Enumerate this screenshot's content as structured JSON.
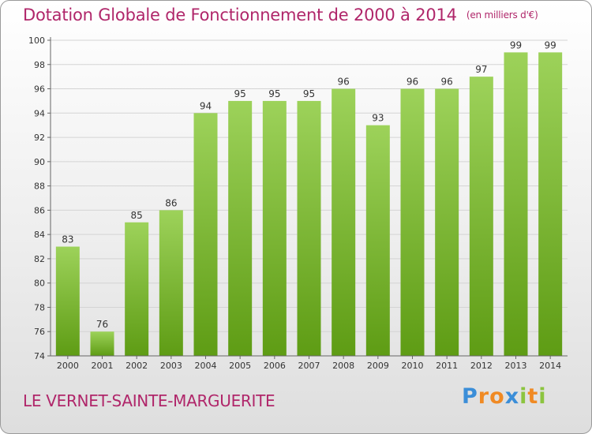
{
  "title": "Dotation Globale de Fonctionnement de 2000 à 2014",
  "unit": "(en milliers d'€)",
  "town": "LE VERNET-SAINTE-MARGUERITE",
  "logo": {
    "text": "Proxiti",
    "letters": [
      {
        "ch": "P",
        "color": "#3b8ed8"
      },
      {
        "ch": "r",
        "color": "#f08a24"
      },
      {
        "ch": "o",
        "color": "#f08a24"
      },
      {
        "ch": "x",
        "color": "#3b8ed8"
      },
      {
        "ch": "i",
        "color": "#8cc43f"
      },
      {
        "ch": "t",
        "color": "#f08a24"
      },
      {
        "ch": "i",
        "color": "#8cc43f"
      }
    ]
  },
  "colors": {
    "title": "#b0266a",
    "bar_top": "#9dd25a",
    "bar_bottom": "#5e9c14",
    "axis": "#666666",
    "grid": "#d4d4d4"
  },
  "chart_data": {
    "type": "bar",
    "categories": [
      "2000",
      "2001",
      "2002",
      "2003",
      "2004",
      "2005",
      "2006",
      "2007",
      "2008",
      "2009",
      "2010",
      "2011",
      "2012",
      "2013",
      "2014"
    ],
    "values": [
      83,
      76,
      85,
      86,
      94,
      95,
      95,
      95,
      96,
      93,
      96,
      96,
      97,
      99,
      99
    ],
    "ylim": [
      74,
      100
    ],
    "yticks": [
      74,
      76,
      78,
      80,
      82,
      84,
      86,
      88,
      90,
      92,
      94,
      96,
      98,
      100
    ],
    "grid": true
  }
}
